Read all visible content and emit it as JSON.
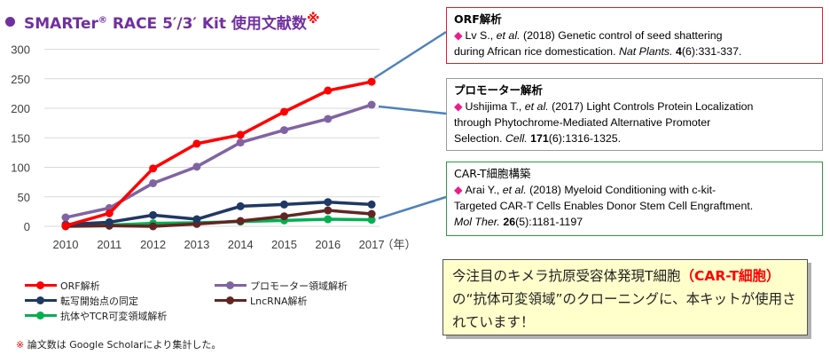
{
  "title": {
    "main": "SMARTer",
    "sup": "®",
    "rest": " RACE 5′/3′ Kit 使用文献数",
    "mark": "※"
  },
  "colors": {
    "title": "#7030a0",
    "orf": "#ff0000",
    "promoter": "#8064a2",
    "tss": "#1f3864",
    "lncrna": "#632523",
    "antibody": "#00b050"
  },
  "chart_data": {
    "type": "line",
    "x": [
      2010,
      2011,
      2012,
      2013,
      2014,
      2015,
      2016,
      2017
    ],
    "xlabel": "（年）",
    "ylim": [
      0,
      300
    ],
    "yticks": [
      0,
      50,
      100,
      150,
      200,
      250,
      300
    ],
    "grid": true,
    "series": [
      {
        "name": "ORF解析",
        "color": "#ff0000",
        "values": [
          1,
          22,
          98,
          140,
          155,
          194,
          230,
          245
        ]
      },
      {
        "name": "プロモーター領域解析",
        "color": "#8064a2",
        "values": [
          15,
          31,
          73,
          101,
          142,
          163,
          182,
          206
        ]
      },
      {
        "name": "転写開始点の同定",
        "color": "#1f3864",
        "values": [
          3,
          7,
          19,
          12,
          34,
          37,
          41,
          37
        ]
      },
      {
        "name": "LncRNA解析",
        "color": "#632523",
        "values": [
          0,
          1,
          0,
          4,
          9,
          17,
          27,
          21
        ]
      },
      {
        "name": "抗体やTCR可変領域解析",
        "color": "#00b050",
        "values": [
          1,
          2,
          5,
          6,
          8,
          10,
          12,
          11
        ]
      }
    ]
  },
  "legend": {
    "orf": "ORF解析",
    "promoter": "プロモーター領域解析",
    "tss": "転写開始点の同定",
    "lncrna": "LncRNA解析",
    "antibody": "抗体やTCR可変領域解析"
  },
  "footnote": {
    "mark": "※",
    "text": " 論文数は Google Scholarにより集計した。"
  },
  "refs": {
    "orf": {
      "title": "ORF解析",
      "diamond": "◆",
      "authors": "Lv S., ",
      "etal": "et al.",
      "l1rest": " (2018) Genetic control of seed shattering",
      "l2": "during African rice domestication. ",
      "journal": "Nat Plants.",
      "vol": " 4",
      "pages": "(6):331-337."
    },
    "promoter": {
      "title": "プロモーター解析",
      "diamond": "◆",
      "authors": "Ushijima T., ",
      "etal": "et al.",
      "l1rest": " (2017) Light Controls Protein Localization",
      "l2": "through Phytochrome-Mediated Alternative Promoter",
      "l3": "Selection. ",
      "journal": "Cell.",
      "vol": " 171",
      "pages": "(6):1316-1325."
    },
    "cart": {
      "title": "CAR-T細胞構築",
      "diamond": "◆",
      "authors": "Arai Y., ",
      "etal": "et al.",
      "l1rest": " (2018) Myeloid Conditioning with c-kit-",
      "l2": "Targeted CAR-T Cells Enables Donor Stem Cell Engraftment.",
      "journal": "Mol Ther.",
      "vol": " 26",
      "pages": "(5):1181-1197"
    }
  },
  "callout": {
    "p1": "今注目のキメラ抗原受容体発現T細胞",
    "red": "（CAR-T細胞）",
    "p2": "の“抗体可変領域”のクローニングに、本キットが使用されています！"
  }
}
